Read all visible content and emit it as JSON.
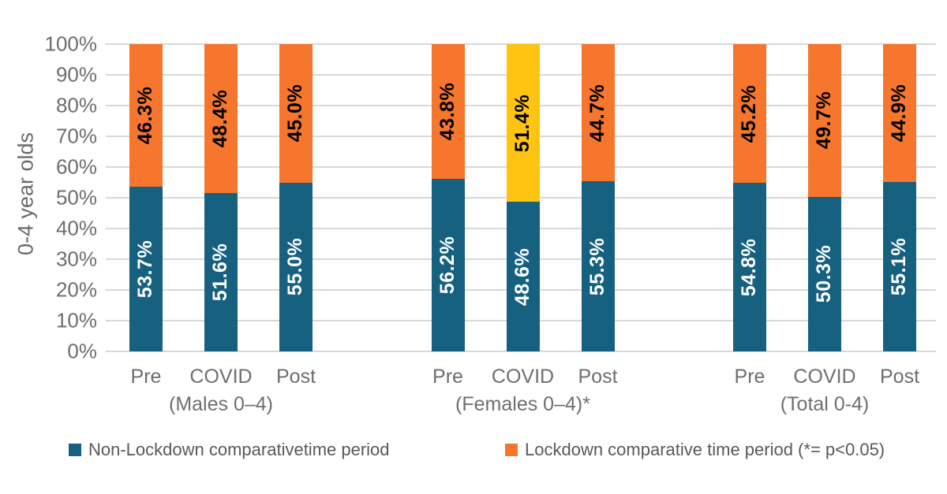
{
  "chart_data": {
    "type": "bar",
    "stacked": true,
    "percent_stacked": true,
    "title": "",
    "xlabel": "",
    "ylabel": "0-4 year olds",
    "ylim": [
      0,
      100
    ],
    "ytick_step": 10,
    "ytick_suffix": "%",
    "grid": true,
    "legend_position": "bottom",
    "colors": {
      "non_lockdown": "#166080",
      "lockdown": "#f5762c",
      "lockdown_significant": "#ffc411",
      "gridline": "#d8d8d8",
      "axis_text": "#6e6e6e",
      "legend_text": "#595959"
    },
    "legend": [
      {
        "label": "Non-Lockdown comparativetime period",
        "color": "#166080"
      },
      {
        "label": "Lockdown comparative time period (*= p<0.05)",
        "color": "#f5762c"
      }
    ],
    "groups": [
      {
        "label": "(Males 0–4)",
        "bars": [
          {
            "category": "Pre",
            "segments": [
              {
                "series": "non_lockdown",
                "value": 53.7,
                "label": "53.7%",
                "color": "#166080",
                "text_color": "#ffffff"
              },
              {
                "series": "lockdown",
                "value": 46.3,
                "label": "46.3%",
                "color": "#f5762c",
                "text_color": "#000000"
              }
            ]
          },
          {
            "category": "COVID",
            "segments": [
              {
                "series": "non_lockdown",
                "value": 51.6,
                "label": "51.6%",
                "color": "#166080",
                "text_color": "#ffffff"
              },
              {
                "series": "lockdown",
                "value": 48.4,
                "label": "48.4%",
                "color": "#f5762c",
                "text_color": "#000000"
              }
            ]
          },
          {
            "category": "Post",
            "segments": [
              {
                "series": "non_lockdown",
                "value": 55.0,
                "label": "55.0%",
                "color": "#166080",
                "text_color": "#ffffff"
              },
              {
                "series": "lockdown",
                "value": 45.0,
                "label": "45.0%",
                "color": "#f5762c",
                "text_color": "#000000"
              }
            ]
          }
        ]
      },
      {
        "label": "(Females 0–4)*",
        "bars": [
          {
            "category": "Pre",
            "segments": [
              {
                "series": "non_lockdown",
                "value": 56.2,
                "label": "56.2%",
                "color": "#166080",
                "text_color": "#ffffff"
              },
              {
                "series": "lockdown",
                "value": 43.8,
                "label": "43.8%",
                "color": "#f5762c",
                "text_color": "#000000"
              }
            ]
          },
          {
            "category": "COVID",
            "segments": [
              {
                "series": "non_lockdown",
                "value": 48.6,
                "label": "48.6%",
                "color": "#166080",
                "text_color": "#ffffff"
              },
              {
                "series": "lockdown",
                "value": 51.4,
                "label": "51.4%",
                "color": "#ffc411",
                "text_color": "#000000"
              }
            ]
          },
          {
            "category": "Post",
            "segments": [
              {
                "series": "non_lockdown",
                "value": 55.3,
                "label": "55.3%",
                "color": "#166080",
                "text_color": "#ffffff"
              },
              {
                "series": "lockdown",
                "value": 44.7,
                "label": "44.7%",
                "color": "#f5762c",
                "text_color": "#000000"
              }
            ]
          }
        ]
      },
      {
        "label": "(Total 0-4)",
        "bars": [
          {
            "category": "Pre",
            "segments": [
              {
                "series": "non_lockdown",
                "value": 54.8,
                "label": "54.8%",
                "color": "#166080",
                "text_color": "#ffffff"
              },
              {
                "series": "lockdown",
                "value": 45.2,
                "label": "45.2%",
                "color": "#f5762c",
                "text_color": "#000000"
              }
            ]
          },
          {
            "category": "COVID",
            "segments": [
              {
                "series": "non_lockdown",
                "value": 50.3,
                "label": "50.3%",
                "color": "#166080",
                "text_color": "#ffffff"
              },
              {
                "series": "lockdown",
                "value": 49.7,
                "label": "49.7%",
                "color": "#f5762c",
                "text_color": "#000000"
              }
            ]
          },
          {
            "category": "Post",
            "segments": [
              {
                "series": "non_lockdown",
                "value": 55.1,
                "label": "55.1%",
                "color": "#166080",
                "text_color": "#ffffff"
              },
              {
                "series": "lockdown",
                "value": 44.9,
                "label": "44.9%",
                "color": "#f5762c",
                "text_color": "#000000"
              }
            ]
          }
        ]
      }
    ]
  }
}
